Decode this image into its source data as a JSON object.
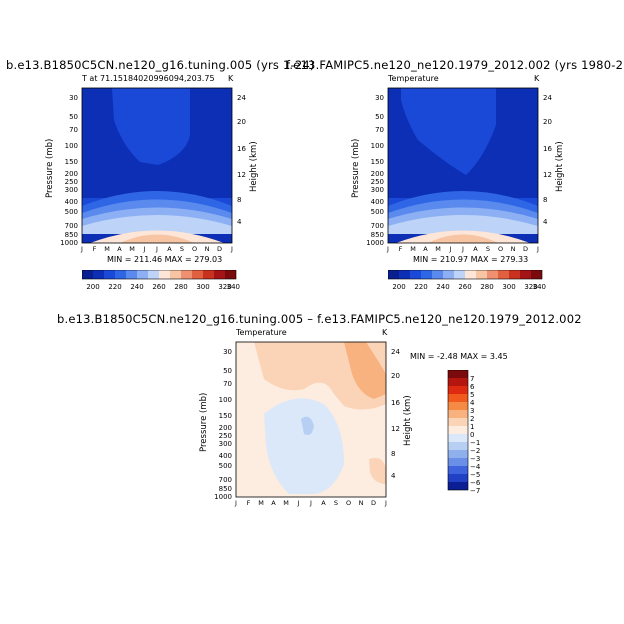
{
  "panel_left": {
    "title": "b.e13.B1850C5CN.ne120_g16.tuning.005 (yrs 1-24)",
    "subtitle": "T at 71.15184020996094,203.75",
    "units": "K",
    "minmax": "MIN = 211.46  MAX = 279.03"
  },
  "panel_right": {
    "title": "f.e13.FAMIPC5.ne120_ne120.1979_2012.002 (yrs 1980-2",
    "subtitle": "Temperature",
    "units": "K",
    "minmax": "MIN = 210.97  MAX = 279.33"
  },
  "panel_diff": {
    "title": "b.e13.B1850C5CN.ne120_g16.tuning.005 – f.e13.FAMIPC5.ne120_ne120.1979_2012.002",
    "subtitle": "Temperature",
    "units": "K",
    "minmax": "MIN =   -2.48  MAX =    3.45"
  },
  "chart_data": [
    {
      "type": "heatmap",
      "title": "b.e13.B1850C5CN.ne120_g16.tuning.005 (yrs 1-24)",
      "xlabel": "",
      "ylabel": "Pressure (mb)",
      "y2label": "Height (km)",
      "x_ticks": [
        "J",
        "F",
        "M",
        "A",
        "M",
        "J",
        "J",
        "A",
        "S",
        "O",
        "N",
        "D",
        "J"
      ],
      "y_ticks": [
        30,
        50,
        70,
        100,
        150,
        200,
        250,
        300,
        400,
        500,
        700,
        850,
        1000
      ],
      "y2_ticks": [
        24,
        20,
        16,
        12,
        8,
        4
      ],
      "colorbar": [
        200,
        220,
        240,
        260,
        280,
        300,
        320,
        340
      ],
      "min": 211.46,
      "max": 279.03
    },
    {
      "type": "heatmap",
      "title": "f.e13.FAMIPC5.ne120_ne120.1979_2012.002 (yrs 1980-2",
      "xlabel": "",
      "ylabel": "Pressure (mb)",
      "y2label": "Height (km)",
      "x_ticks": [
        "J",
        "F",
        "M",
        "A",
        "M",
        "J",
        "J",
        "A",
        "S",
        "O",
        "N",
        "D",
        "J"
      ],
      "y_ticks": [
        30,
        50,
        70,
        100,
        150,
        200,
        250,
        300,
        400,
        500,
        700,
        850,
        1000
      ],
      "y2_ticks": [
        24,
        20,
        16,
        12,
        8,
        4
      ],
      "colorbar": [
        200,
        220,
        240,
        260,
        280,
        300,
        320,
        340
      ],
      "min": 210.97,
      "max": 279.33
    },
    {
      "type": "heatmap",
      "title": "b.e13.B1850C5CN.ne120_g16.tuning.005 – f.e13.FAMIPC5.ne120_ne120.1979_2012.002",
      "xlabel": "",
      "ylabel": "Pressure (mb)",
      "y2label": "Height (km)",
      "x_ticks": [
        "J",
        "F",
        "M",
        "A",
        "M",
        "J",
        "J",
        "A",
        "S",
        "O",
        "N",
        "D",
        "J"
      ],
      "y_ticks": [
        30,
        50,
        70,
        100,
        150,
        200,
        250,
        300,
        400,
        500,
        700,
        850,
        1000
      ],
      "y2_ticks": [
        24,
        20,
        16,
        12,
        8,
        4
      ],
      "colorbar": [
        7,
        6,
        5,
        4,
        3,
        2,
        1,
        0,
        -1,
        -2,
        -3,
        -4,
        -5,
        -6,
        -7
      ],
      "min": -2.48,
      "max": 3.45
    }
  ],
  "labels": {
    "pressure": "Pressure (mb)",
    "height": "Height (km)"
  },
  "colors": {
    "abs_scale": [
      "#0a1f8f",
      "#0d2fb5",
      "#1a49d8",
      "#2f66e6",
      "#5a8aee",
      "#8cb0f3",
      "#bdd3f8",
      "#fde6d8",
      "#f7c4a4",
      "#ef9170",
      "#e0603f",
      "#c9321f",
      "#a41416",
      "#7a0a0c"
    ],
    "diff_scale": [
      "#7a0a0c",
      "#b5150f",
      "#dd2a10",
      "#f05a1d",
      "#f58a45",
      "#f7b280",
      "#fbd3b6",
      "#fdece0",
      "#dbe8fa",
      "#b7cff3",
      "#8fb0ec",
      "#6a8fe6",
      "#3e63dc",
      "#2140c4",
      "#0c1e93"
    ]
  }
}
